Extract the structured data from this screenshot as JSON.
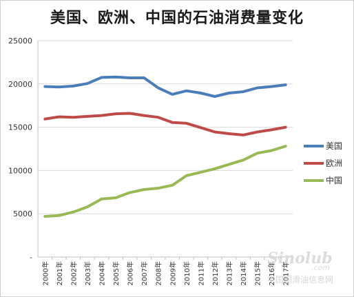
{
  "chart_data": {
    "type": "line",
    "title": "美国、欧洲、中国的石油消费量变化",
    "categories": [
      "2000年",
      "2001年",
      "2002年",
      "2003年",
      "2004年",
      "2005年",
      "2006年",
      "2007年",
      "2008年",
      "2009年",
      "2010年",
      "2011年",
      "2012年",
      "2013年",
      "2014年",
      "2015年",
      "2016年",
      "2017年"
    ],
    "series": [
      {
        "name": "美国",
        "color": "#4a7ebb",
        "values": [
          19700,
          19650,
          19750,
          20050,
          20750,
          20800,
          20700,
          20700,
          19550,
          18800,
          19200,
          18950,
          18550,
          18950,
          19100,
          19550,
          19700,
          19900
        ]
      },
      {
        "name": "欧洲",
        "color": "#be4b48",
        "values": [
          15950,
          16200,
          16150,
          16250,
          16350,
          16550,
          16600,
          16350,
          16150,
          15550,
          15450,
          14950,
          14450,
          14250,
          14100,
          14450,
          14700,
          15000
        ]
      },
      {
        "name": "中国",
        "color": "#98b954",
        "values": [
          4700,
          4800,
          5200,
          5800,
          6700,
          6850,
          7450,
          7800,
          7950,
          8300,
          9400,
          9800,
          10200,
          10700,
          11200,
          12000,
          12300,
          12800
        ]
      }
    ],
    "y_ticks": [
      "25000",
      "20000",
      "15000",
      "10000",
      "5000",
      "-"
    ],
    "ylim": [
      0,
      25000
    ],
    "grid": true,
    "legend_position": "right"
  },
  "watermark": {
    "logo": "Sinolub",
    "domain": ".com",
    "cn_text": "中国润滑油信息网"
  }
}
